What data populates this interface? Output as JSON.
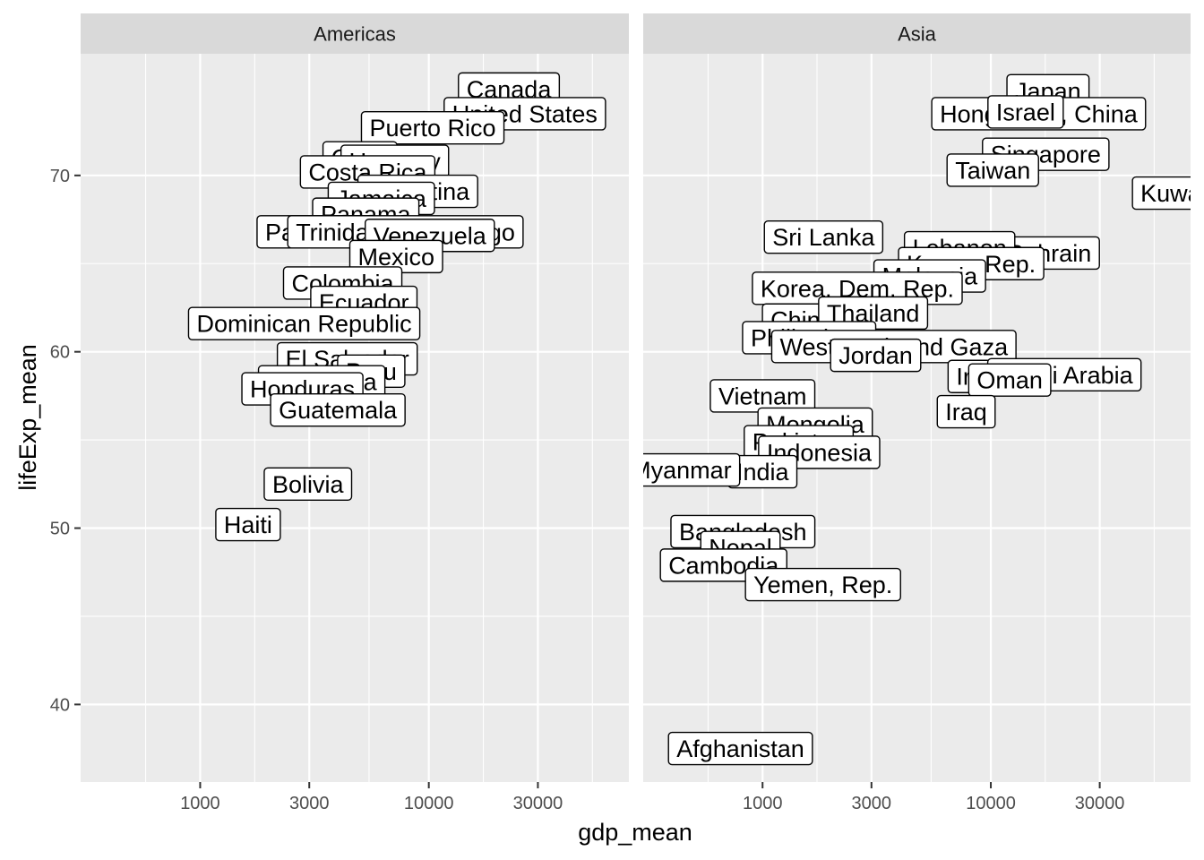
{
  "chart_data": {
    "type": "scatter",
    "geom": "label",
    "x_scale": "log10",
    "xlabel": "gdp_mean",
    "ylabel": "lifeExp_mean",
    "xlim": [
      300,
      75000
    ],
    "ylim": [
      35.6,
      76.9
    ],
    "x_ticks": [
      1000,
      3000,
      10000,
      30000
    ],
    "x_tick_labels": [
      "1000",
      "3000",
      "10000",
      "30000"
    ],
    "y_ticks": [
      40,
      50,
      60,
      70
    ],
    "y_tick_labels": [
      "40",
      "50",
      "60",
      "70"
    ],
    "grid": true,
    "facets": [
      {
        "name": "Americas",
        "points": [
          {
            "label": "Canada",
            "x": 22400,
            "y": 74.9
          },
          {
            "label": "United States",
            "x": 26300,
            "y": 73.5
          },
          {
            "label": "Puerto Rico",
            "x": 10400,
            "y": 72.7
          },
          {
            "label": "Cuba",
            "x": 5000,
            "y": 71.0
          },
          {
            "label": "Uruguay",
            "x": 7100,
            "y": 70.8
          },
          {
            "label": "Costa Rica",
            "x": 5400,
            "y": 70.2
          },
          {
            "label": "Argentina",
            "x": 8950,
            "y": 69.1
          },
          {
            "label": "Jamaica",
            "x": 6200,
            "y": 68.7
          },
          {
            "label": "Panama",
            "x": 5300,
            "y": 67.8
          },
          {
            "label": "Paraguay",
            "x": 3240,
            "y": 66.8
          },
          {
            "label": "Trinidad and Tobago",
            "x": 7900,
            "y": 66.8
          },
          {
            "label": "Venezuela",
            "x": 10100,
            "y": 66.6
          },
          {
            "label": "Mexico",
            "x": 7200,
            "y": 65.4
          },
          {
            "label": "Colombia",
            "x": 4200,
            "y": 63.9
          },
          {
            "label": "Ecuador",
            "x": 5200,
            "y": 62.8
          },
          {
            "label": "Dominican Republic",
            "x": 2850,
            "y": 61.6
          },
          {
            "label": "El Salvador",
            "x": 4400,
            "y": 59.6
          },
          {
            "label": "Peru",
            "x": 5600,
            "y": 58.9
          },
          {
            "label": "Nicaragua",
            "x": 3400,
            "y": 58.3
          },
          {
            "label": "Honduras",
            "x": 2800,
            "y": 57.9
          },
          {
            "label": "Guatemala",
            "x": 4000,
            "y": 56.7
          },
          {
            "label": "Bolivia",
            "x": 2960,
            "y": 52.5
          },
          {
            "label": "Haiti",
            "x": 1620,
            "y": 50.2
          }
        ]
      },
      {
        "name": "Asia",
        "points": [
          {
            "label": "Japan",
            "x": 17800,
            "y": 74.8
          },
          {
            "label": "Hong Kong, China",
            "x": 16200,
            "y": 73.5
          },
          {
            "label": "Israel",
            "x": 14200,
            "y": 73.6
          },
          {
            "label": "Singapore",
            "x": 17400,
            "y": 71.2
          },
          {
            "label": "Taiwan",
            "x": 10200,
            "y": 70.3
          },
          {
            "label": "Kuwait",
            "x": 65300,
            "y": 69.0
          },
          {
            "label": "Sri Lanka",
            "x": 1850,
            "y": 66.5
          },
          {
            "label": "Bahrain",
            "x": 18100,
            "y": 65.6
          },
          {
            "label": "Lebanon",
            "x": 7300,
            "y": 65.9
          },
          {
            "label": "Korea, Rep.",
            "x": 8200,
            "y": 65.0
          },
          {
            "label": "Malaysia",
            "x": 5400,
            "y": 64.3
          },
          {
            "label": "Korea, Dem. Rep.",
            "x": 2600,
            "y": 63.6
          },
          {
            "label": "China",
            "x": 1490,
            "y": 61.8
          },
          {
            "label": "Thailand",
            "x": 3050,
            "y": 62.2
          },
          {
            "label": "Philippines",
            "x": 1600,
            "y": 60.8
          },
          {
            "label": "West Bank and Gaza",
            "x": 3760,
            "y": 60.3
          },
          {
            "label": "Jordan",
            "x": 3130,
            "y": 59.8
          },
          {
            "label": "Iran",
            "x": 8700,
            "y": 58.6
          },
          {
            "label": "Saudi Arabia",
            "x": 21000,
            "y": 58.7
          },
          {
            "label": "Oman",
            "x": 12100,
            "y": 58.4
          },
          {
            "label": "Iraq",
            "x": 7800,
            "y": 56.6
          },
          {
            "label": "Vietnam",
            "x": 1000,
            "y": 57.5
          },
          {
            "label": "Mongolia",
            "x": 1700,
            "y": 55.9
          },
          {
            "label": "Pakistan",
            "x": 1440,
            "y": 54.9
          },
          {
            "label": "Indonesia",
            "x": 1770,
            "y": 54.3
          },
          {
            "label": "India",
            "x": 1000,
            "y": 53.2
          },
          {
            "label": "Myanmar",
            "x": 440,
            "y": 53.3
          },
          {
            "label": "Bangladesh",
            "x": 820,
            "y": 49.8
          },
          {
            "label": "Nepal",
            "x": 800,
            "y": 48.9
          },
          {
            "label": "Cambodia",
            "x": 675,
            "y": 47.9
          },
          {
            "label": "Yemen, Rep.",
            "x": 1840,
            "y": 46.8
          },
          {
            "label": "Afghanistan",
            "x": 800,
            "y": 37.5
          }
        ]
      }
    ]
  }
}
